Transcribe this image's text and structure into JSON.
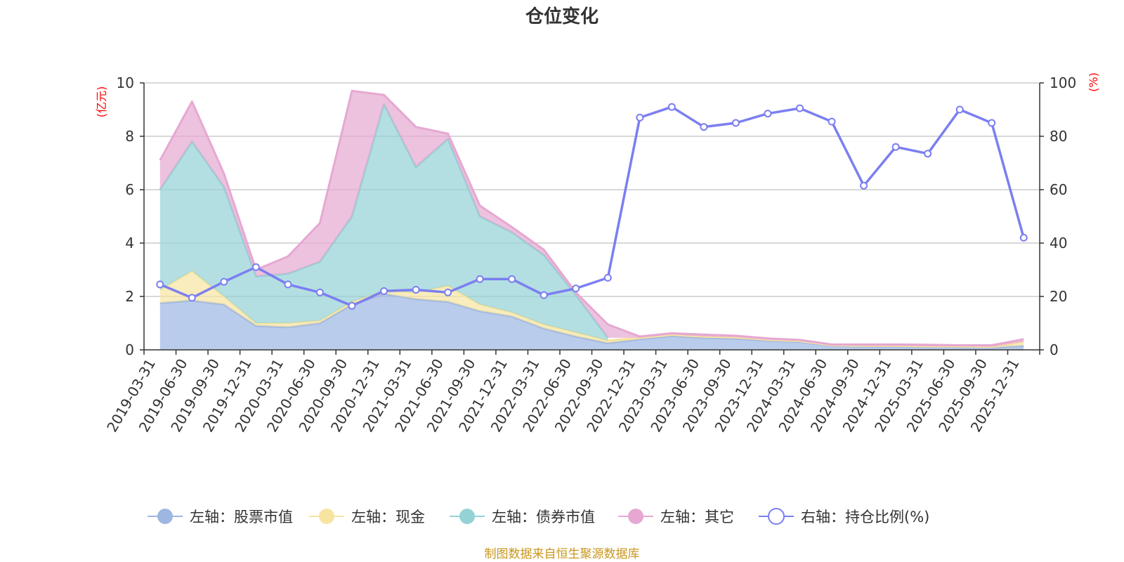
{
  "chart_data": {
    "type": "area",
    "title": "仓位变化",
    "source": "制图数据来自恒生聚源数据库",
    "left_axis": {
      "unit": "(亿元)",
      "min": 0,
      "max": 10,
      "ticks": [
        "0",
        "2",
        "4",
        "6",
        "8",
        "10"
      ]
    },
    "right_axis": {
      "unit": "(%)",
      "min": 0,
      "max": 100,
      "ticks": [
        "0",
        "20",
        "40",
        "60",
        "80",
        "100"
      ]
    },
    "colors": {
      "stock": "#9db6e2",
      "cash": "#f7e4a1",
      "bond": "#94d2d5",
      "other": "#e6a8d2",
      "ratio": "#7b7ff0"
    },
    "categories": [
      "2019-03-31",
      "2019-06-30",
      "2019-09-30",
      "2019-12-31",
      "2020-03-31",
      "2020-06-30",
      "2020-09-30",
      "2020-12-31",
      "2021-03-31",
      "2021-06-30",
      "2021-09-30",
      "2021-12-31",
      "2022-03-31",
      "2022-06-30",
      "2022-09-30",
      "2022-12-31",
      "2023-03-31",
      "2023-06-30",
      "2023-09-30",
      "2023-12-31",
      "2024-03-31",
      "2024-06-30",
      "2024-09-30",
      "2024-12-31",
      "2025-03-31",
      "2025-06-30",
      "2025-09-30",
      "2025-12-31"
    ],
    "series": [
      {
        "name": "左轴：股票市值",
        "key": "stock",
        "axis": "left",
        "stacked": true,
        "values": [
          1.75,
          1.85,
          1.7,
          0.9,
          0.85,
          1.0,
          1.7,
          2.1,
          1.9,
          1.8,
          1.45,
          1.25,
          0.8,
          0.5,
          0.25,
          0.4,
          0.52,
          0.45,
          0.42,
          0.35,
          0.3,
          0.15,
          0.12,
          0.12,
          0.1,
          0.1,
          0.08,
          0.15
        ]
      },
      {
        "name": "左轴：现金",
        "key": "cash",
        "axis": "left",
        "stacked": true,
        "values": [
          0.5,
          1.1,
          0.3,
          0.1,
          0.15,
          0.1,
          0.1,
          0.1,
          0.25,
          0.6,
          0.25,
          0.15,
          0.15,
          0.15,
          0.1,
          0.05,
          0.05,
          0.05,
          0.05,
          0.03,
          0.03,
          0.02,
          0.03,
          0.03,
          0.03,
          0.03,
          0.03,
          0.15
        ]
      },
      {
        "name": "左轴：债券市值",
        "key": "bond",
        "axis": "left",
        "stacked": true,
        "values": [
          3.75,
          4.85,
          4.1,
          1.75,
          1.85,
          2.2,
          3.2,
          7.0,
          4.7,
          5.5,
          3.3,
          3.0,
          2.6,
          1.4,
          0.1,
          null,
          null,
          null,
          null,
          null,
          null,
          null,
          null,
          null,
          null,
          null,
          null,
          null
        ]
      },
      {
        "name": "左轴：其它",
        "key": "other",
        "axis": "left",
        "stacked": true,
        "values": [
          1.1,
          1.5,
          0.5,
          0.25,
          0.65,
          1.45,
          4.7,
          0.35,
          1.5,
          0.2,
          0.4,
          0.2,
          0.2,
          0.1,
          0.5,
          0.05,
          0.05,
          0.07,
          0.06,
          0.05,
          0.04,
          0.03,
          0.05,
          0.05,
          0.06,
          0.04,
          0.06,
          0.1
        ]
      },
      {
        "name": "右轴：持仓比例(%)",
        "key": "ratio",
        "axis": "right",
        "type": "line",
        "values": [
          24.5,
          19.5,
          25.5,
          31.0,
          24.5,
          21.5,
          16.5,
          22.0,
          22.5,
          21.5,
          26.5,
          26.5,
          20.5,
          23.0,
          27.0,
          87.0,
          91.0,
          83.5,
          85.0,
          88.5,
          90.5,
          85.5,
          61.5,
          76.0,
          73.5,
          90.0,
          85.0,
          42.0
        ]
      }
    ]
  }
}
